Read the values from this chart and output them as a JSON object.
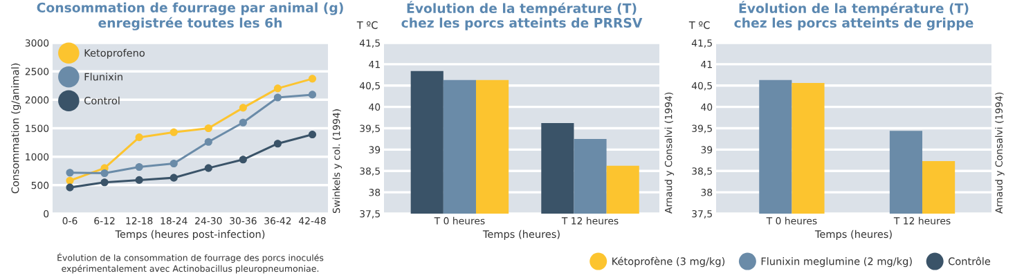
{
  "chart_data": [
    {
      "type": "line",
      "title": "Consommation de fourrage par animal (g)\nenregistrée toutes les 6h",
      "xlabel": "Temps (heures post-infection)",
      "ylabel": "Consommation (g/animal)",
      "categories": [
        "0-6",
        "6-12",
        "12-18",
        "18-24",
        "24-30",
        "30-36",
        "36-42",
        "42-48"
      ],
      "series": [
        {
          "name": "Ketoprofeno",
          "color": "#fcc42f",
          "values": [
            580,
            800,
            1340,
            1430,
            1500,
            1860,
            2200,
            2370
          ]
        },
        {
          "name": "Flunixin",
          "color": "#6a8ba8",
          "values": [
            720,
            710,
            820,
            880,
            1260,
            1600,
            2040,
            2090
          ]
        },
        {
          "name": "Control",
          "color": "#3a5368",
          "values": [
            460,
            550,
            590,
            630,
            800,
            950,
            1230,
            1390
          ]
        }
      ],
      "ylim": [
        0,
        3000
      ],
      "yticks": [
        0,
        500,
        1000,
        1500,
        2000,
        2500,
        3000
      ],
      "grid": "y",
      "legend": "top left",
      "marker": "circle",
      "annotations": [
        "Évolution de la consommation de fourrage des porcs inoculés\nexpérimentalement avec Actinobacillus pleuropneumoniae."
      ]
    },
    {
      "type": "bar",
      "title": "Évolution de la température (T)\nchez les porcs atteints de PRRSV",
      "xlabel": "Temps (heures)",
      "ylabel": "T ºC",
      "categories": [
        "T 0 heures",
        "T 12 heures"
      ],
      "series": [
        {
          "color": "#3a5368",
          "values": [
            40.84,
            39.62
          ]
        },
        {
          "color": "#6a8ba8",
          "values": [
            40.63,
            39.25
          ]
        },
        {
          "color": "#fcc42f",
          "values": [
            40.63,
            38.62
          ]
        }
      ],
      "ylim": [
        37.5,
        41.5
      ],
      "yticks": [
        {
          "value": 37.5,
          "label": "37,5"
        },
        38,
        {
          "value": 38.5,
          "label": "38,5"
        },
        39,
        {
          "value": 39.5,
          "label": "39,5"
        },
        40,
        {
          "value": 40.5,
          "label": "40,5"
        },
        41,
        {
          "value": 41.5,
          "label": "41,5"
        }
      ],
      "grid": "y",
      "annotations": [
        "Swinkels y col. (1994)"
      ]
    },
    {
      "type": "bar",
      "title": "Évolution de la température (T)\nchez les porcs atteints de grippe",
      "xlabel": "Temps (heures)",
      "ylabel": "T ºC",
      "categories": [
        "T 0 heures",
        "T 12 heures"
      ],
      "series": [
        {
          "name": "Contrôle",
          "color": "#3a5368",
          "values": [
            null,
            null
          ]
        },
        {
          "name": "Flunixin meglumine (2 mg/kg)",
          "color": "#6a8ba8",
          "values": [
            40.63,
            39.44
          ]
        },
        {
          "name": "Kétoprofène (3 mg/kg)",
          "color": "#fcc42f",
          "values": [
            40.56,
            38.73
          ]
        }
      ],
      "ylim": [
        37.5,
        41.5
      ],
      "yticks": [
        {
          "value": 37.5,
          "label": "37,5"
        },
        38,
        {
          "value": 38.5,
          "label": "38,5"
        },
        39,
        {
          "value": 39.5,
          "label": "39,5"
        },
        40,
        {
          "value": 40.5,
          "label": "40,5"
        },
        41,
        {
          "value": 41.5,
          "label": "41,5"
        }
      ],
      "grid": "y",
      "legend": "bottom",
      "annotations": [
        "Arnaud y Consalvi (1994)",
        "Arnaud y Consalvi (1994)"
      ]
    }
  ]
}
